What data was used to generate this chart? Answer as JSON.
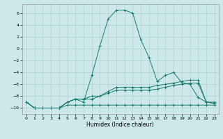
{
  "title": "",
  "xlabel": "Humidex (Indice chaleur)",
  "ylabel": "",
  "background_color": "#cce8e8",
  "grid_color": "#b0d0d0",
  "line_color": "#1a7a6e",
  "x_ticks": [
    0,
    1,
    2,
    3,
    4,
    5,
    6,
    7,
    8,
    9,
    10,
    11,
    12,
    13,
    14,
    15,
    16,
    17,
    18,
    19,
    20,
    21,
    22,
    23
  ],
  "ylim": [
    -11,
    7.5
  ],
  "xlim": [
    -0.5,
    23.5
  ],
  "yticks": [
    -10,
    -8,
    -6,
    -4,
    -2,
    0,
    2,
    4,
    6
  ],
  "series1": {
    "x": [
      0,
      1,
      2,
      3,
      4,
      5,
      6,
      7,
      8,
      9,
      10,
      11,
      12,
      13,
      14,
      15,
      16,
      17,
      18,
      19,
      20,
      21,
      22,
      23
    ],
    "y": [
      -9,
      -10,
      -10,
      -10,
      -10,
      -9.5,
      -9.5,
      -9.5,
      -9.5,
      -9.5,
      -9.5,
      -9.5,
      -9.5,
      -9.5,
      -9.5,
      -9.5,
      -9.5,
      -9.5,
      -9.5,
      -9.5,
      -9.5,
      -9.5,
      -9.5,
      -9.5
    ]
  },
  "series2": {
    "x": [
      0,
      1,
      2,
      3,
      4,
      5,
      6,
      7,
      8,
      9,
      10,
      11,
      12,
      13,
      14,
      15,
      16,
      17,
      18,
      19,
      20,
      21,
      22,
      23
    ],
    "y": [
      -9,
      -10,
      -10,
      -10,
      -10,
      -9,
      -8.5,
      -8.5,
      -8.5,
      -8,
      -7.5,
      -7,
      -7,
      -7,
      -7,
      -7,
      -6.8,
      -6.5,
      -6.2,
      -6,
      -5.8,
      -5.8,
      -9,
      -9.2
    ]
  },
  "series3": {
    "x": [
      0,
      1,
      2,
      3,
      4,
      5,
      6,
      7,
      8,
      9,
      10,
      11,
      12,
      13,
      14,
      15,
      16,
      17,
      18,
      19,
      20,
      21,
      22,
      23
    ],
    "y": [
      -9,
      -10,
      -10,
      -10,
      -10,
      -9,
      -8.5,
      -8.5,
      -8,
      -8,
      -7.2,
      -6.5,
      -6.5,
      -6.5,
      -6.5,
      -6.5,
      -6.2,
      -6,
      -5.8,
      -5.5,
      -5.3,
      -5.3,
      -9,
      -9.2
    ]
  },
  "series4": {
    "x": [
      0,
      1,
      2,
      3,
      4,
      5,
      6,
      7,
      8,
      9,
      10,
      11,
      12,
      13,
      14,
      15,
      16,
      17,
      18,
      19,
      20,
      21,
      22,
      23
    ],
    "y": [
      -9,
      -10,
      -10,
      -10,
      -10,
      -9,
      -8.5,
      -9,
      -4.5,
      0.5,
      5.0,
      6.5,
      6.5,
      6.0,
      1.5,
      -1.5,
      -5.5,
      -4.5,
      -4.0,
      -5.7,
      -6.0,
      -8.2,
      -9.0,
      -9.0
    ]
  }
}
